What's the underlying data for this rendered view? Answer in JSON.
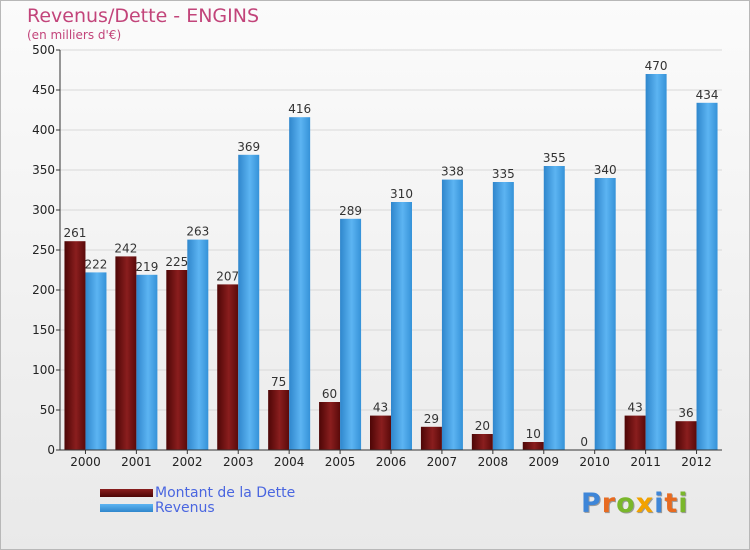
{
  "title": "Revenus/Dette - ENGINS",
  "subtitle": "(en milliers d'€)",
  "logo": {
    "letters": [
      "P",
      "r",
      "o",
      "x",
      "i",
      "t",
      "i"
    ],
    "colors": [
      "#3e86d8",
      "#e76b21",
      "#7ab72b",
      "#f2a200",
      "#3e86d8",
      "#e76b21",
      "#7ab72b"
    ]
  },
  "chart_data": {
    "type": "bar",
    "categories": [
      "2000",
      "2001",
      "2002",
      "2003",
      "2004",
      "2005",
      "2006",
      "2007",
      "2008",
      "2009",
      "2010",
      "2011",
      "2012"
    ],
    "series": [
      {
        "name": "Montant de la Dette",
        "color": "#6b0d0d",
        "values": [
          261,
          242,
          225,
          207,
          75,
          60,
          43,
          29,
          20,
          10,
          0,
          43,
          36
        ]
      },
      {
        "name": "Revenus",
        "color": "#3d9ee6",
        "values": [
          222,
          219,
          263,
          369,
          416,
          289,
          310,
          338,
          335,
          355,
          340,
          470,
          434
        ]
      }
    ],
    "ylim": [
      0,
      500
    ],
    "yticks": [
      0,
      50,
      100,
      150,
      200,
      250,
      300,
      350,
      400,
      450,
      500
    ],
    "grid": true,
    "legend_position": "bottom-left"
  }
}
